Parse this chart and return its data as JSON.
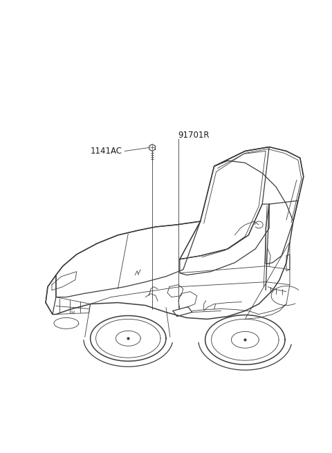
{
  "background_color": "#ffffff",
  "fig_width": 4.8,
  "fig_height": 6.55,
  "dpi": 100,
  "label_91701R": "91701R",
  "label_1141AC": "1141AC",
  "line_color": "#3a3a3a",
  "annotation_color": "#1a1a1a",
  "font_size_labels": 8.5,
  "lw_main": 1.1,
  "lw_body": 0.9,
  "lw_thin": 0.6
}
